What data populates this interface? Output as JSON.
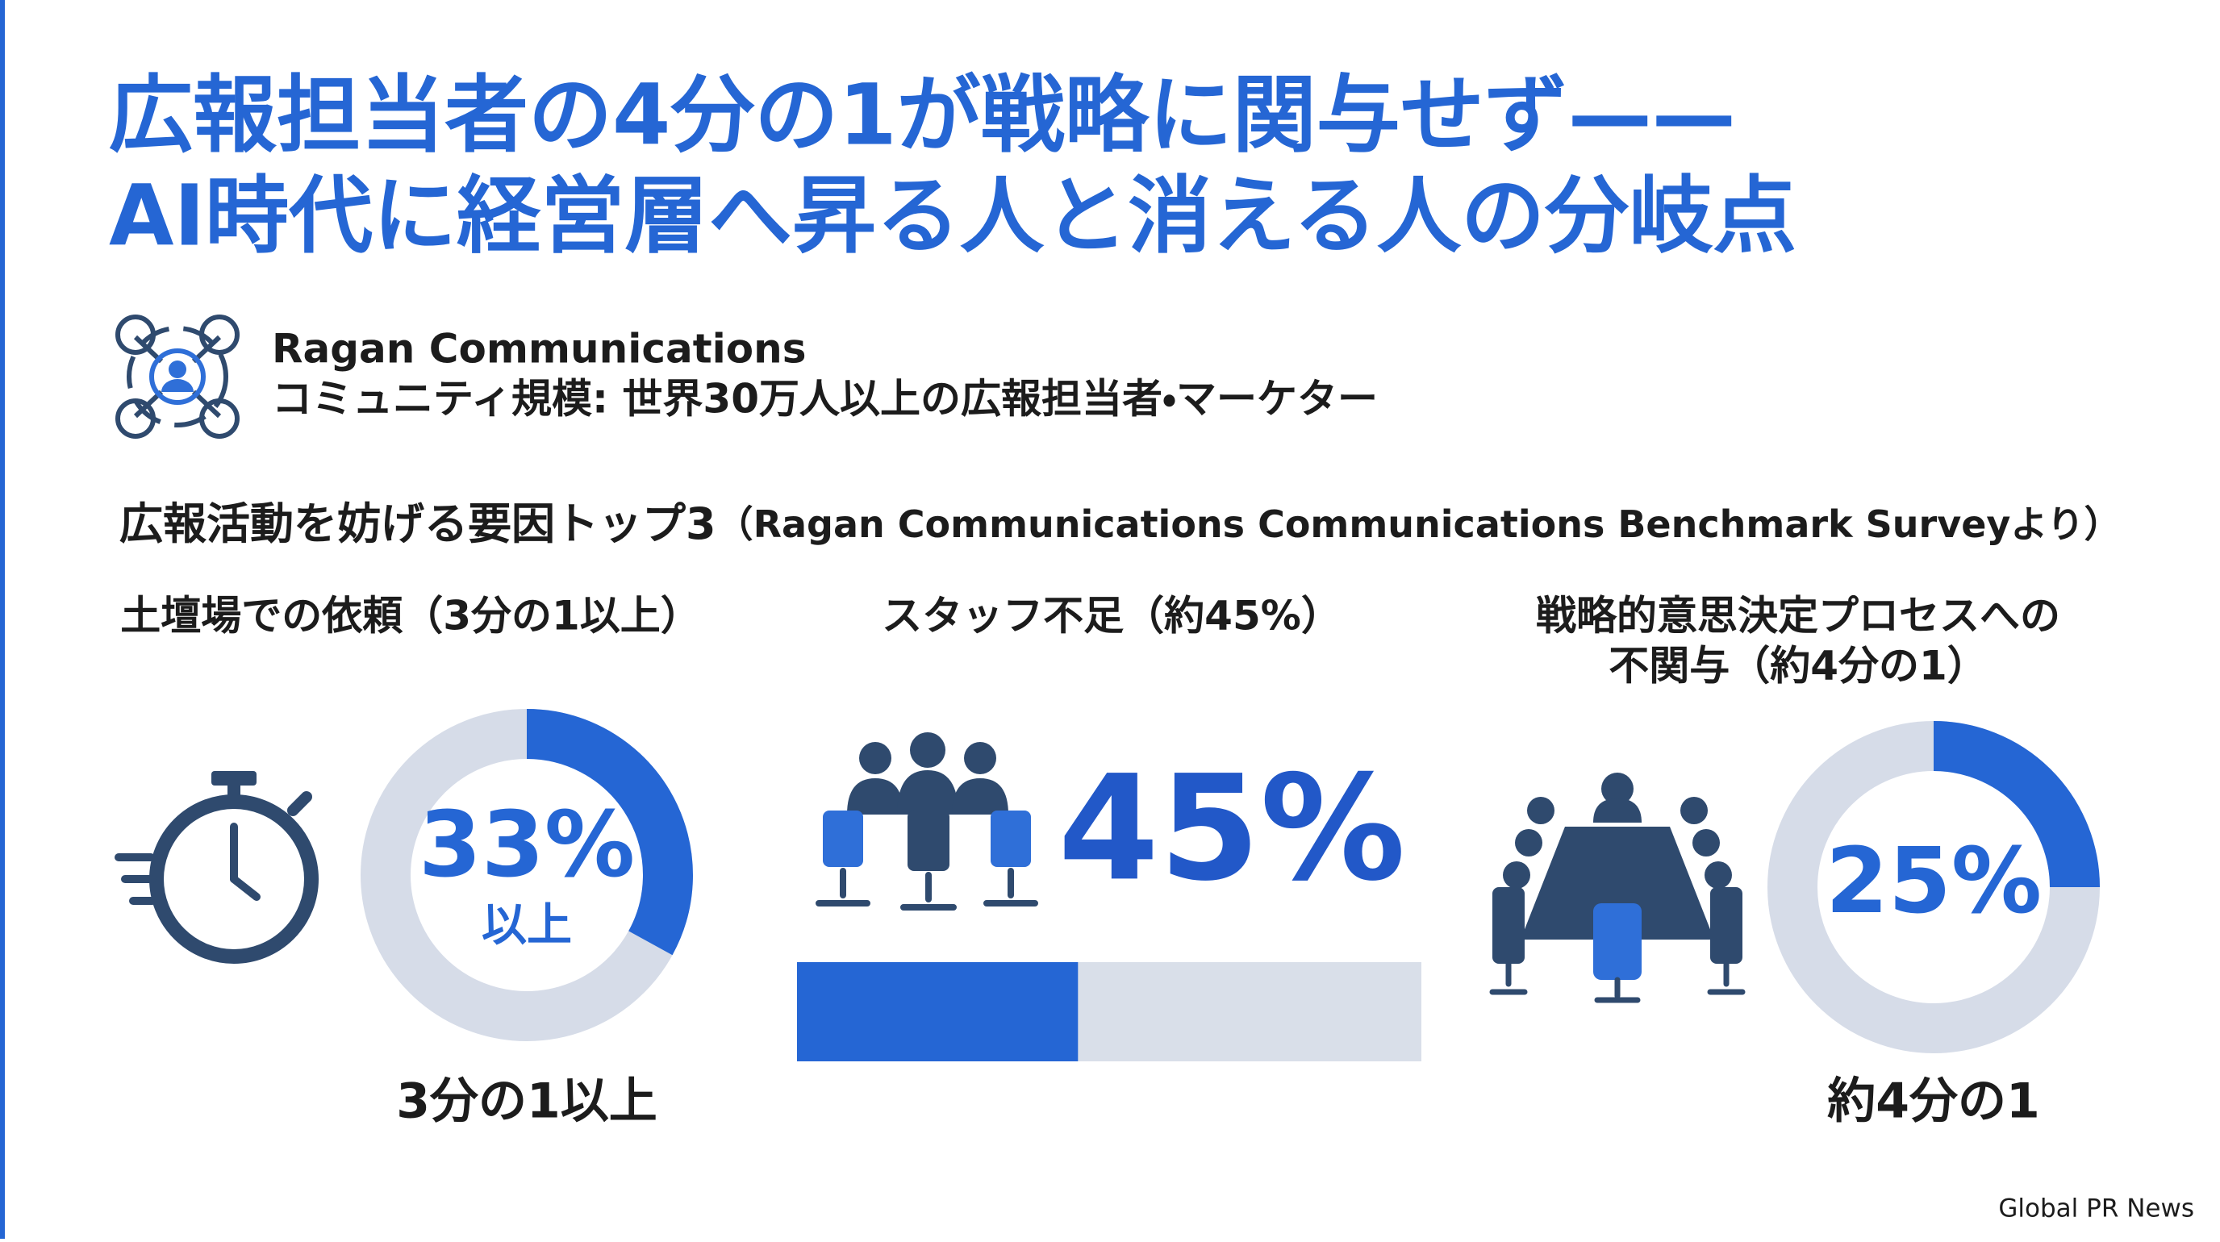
{
  "header": {
    "title_lines": [
      "広報担当者の4分の1が戦略に関与せず——",
      "AI時代に経営層へ昇る人と消える人の分岐点"
    ]
  },
  "source": {
    "name": "Ragan Communications",
    "description": "コミュニティ規模: 世界30万人以上の広報担当者・マーケター"
  },
  "section": {
    "title": "広報活動を妨げる要因トップ3",
    "note": "（Ragan Communications Communications Benchmark Surveyより）"
  },
  "items": [
    {
      "label_lines": [
        "土壇場での依頼（3分の1以上）"
      ],
      "value": 33,
      "value_label": "33%",
      "sublabel": "以上",
      "caption": "3分の1以上",
      "style": "donut"
    },
    {
      "label_lines": [
        "スタッフ不足（約45%）"
      ],
      "value": 45,
      "value_label": "45%",
      "style": "bar"
    },
    {
      "label_lines": [
        "戦略的意思決定プロセスへの",
        "不関与（約4分の1）"
      ],
      "value": 25,
      "value_label": "25%",
      "caption": "約4分の1",
      "style": "donut"
    }
  ],
  "footer": {
    "credit": "Global PR News"
  }
}
